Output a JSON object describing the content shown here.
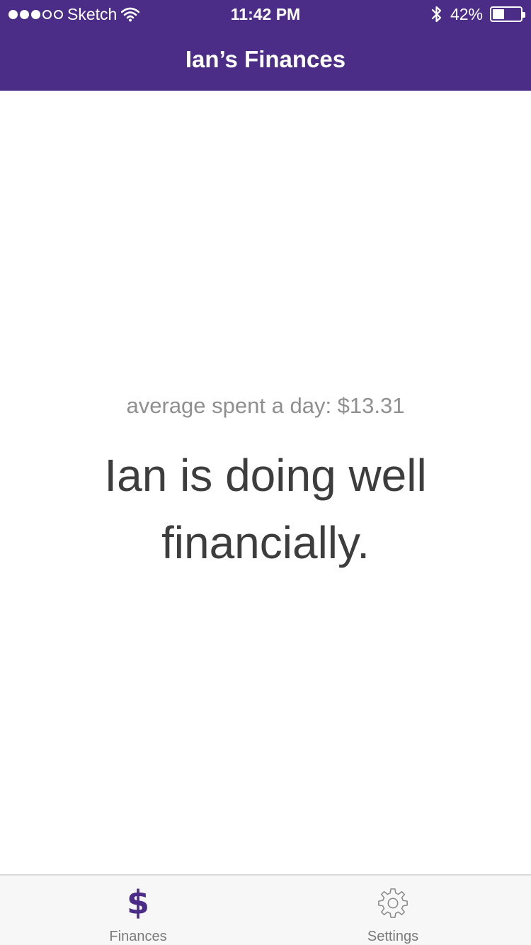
{
  "status_bar": {
    "carrier": "Sketch",
    "signal_bars_filled": 3,
    "signal_bars_total": 5,
    "time": "11:42 PM",
    "battery_percent": "42%",
    "battery_level": 0.42
  },
  "nav": {
    "title": "Ian’s Finances"
  },
  "main": {
    "average_text": "average spent a day: $13.31",
    "status_message": "Ian is doing well financially."
  },
  "tabs": [
    {
      "label": "Finances",
      "icon": "dollar-icon",
      "active": true
    },
    {
      "label": "Settings",
      "icon": "gear-icon",
      "active": false
    }
  ],
  "colors": {
    "brand": "#4b2d88",
    "active_icon": "#4b2d88",
    "inactive_icon": "#8a8a8a"
  }
}
